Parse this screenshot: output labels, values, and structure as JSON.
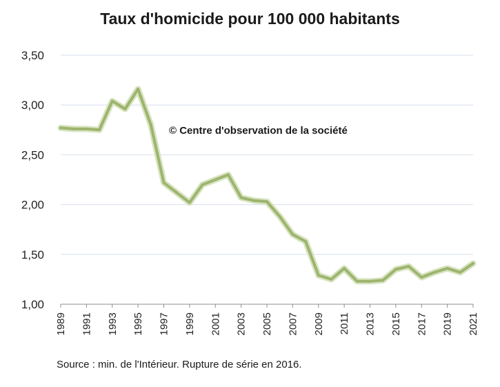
{
  "chart_data": {
    "type": "line",
    "title": "Taux d'homicide pour 100 000 habitants",
    "annotation": "© Centre d'observation de la société",
    "source": "Source : min. de l'Intérieur. Rupture de série en 2016.",
    "xlabel": "",
    "ylabel": "",
    "ylim": [
      1.0,
      3.5
    ],
    "yticks": [
      "1,00",
      "1,50",
      "2,00",
      "2,50",
      "3,00",
      "3,50"
    ],
    "xticks": [
      "1989",
      "1991",
      "1993",
      "1995",
      "1997",
      "1999",
      "2001",
      "2003",
      "2005",
      "2007",
      "2009",
      "2011",
      "2013",
      "2015",
      "2017",
      "2019",
      "2021"
    ],
    "grid": "horizontal",
    "line_color": "#9db46e",
    "x": [
      1989,
      1990,
      1991,
      1992,
      1993,
      1994,
      1995,
      1996,
      1997,
      1998,
      1999,
      2000,
      2001,
      2002,
      2003,
      2004,
      2005,
      2006,
      2007,
      2008,
      2009,
      2010,
      2011,
      2012,
      2013,
      2014,
      2015,
      2016,
      2017,
      2018,
      2019,
      2020,
      2021
    ],
    "series": [
      {
        "values": [
          2.77,
          2.76,
          2.76,
          2.75,
          3.04,
          2.96,
          3.16,
          2.8,
          2.22,
          2.12,
          2.02,
          2.2,
          2.25,
          2.3,
          2.07,
          2.04,
          2.03,
          1.88,
          1.7,
          1.63,
          1.29,
          1.25,
          1.36,
          1.23,
          1.23,
          1.24,
          1.35,
          1.38,
          1.27,
          1.32,
          1.36,
          1.32,
          1.41
        ]
      }
    ]
  }
}
